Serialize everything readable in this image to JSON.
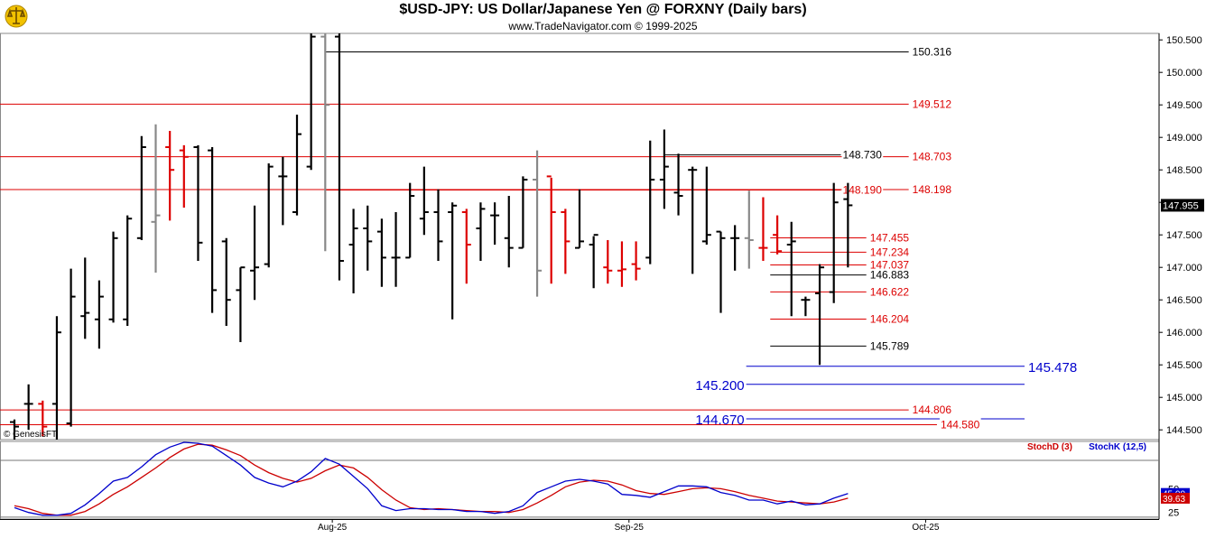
{
  "chart_data": {
    "type": "ohlc",
    "title": "$USD-JPY:  US Dollar/Japanese Yen @ FORXNY  (Daily bars)",
    "subtitle": "www.TradeNavigator.com © 1999-2025",
    "watermark": "© GenesisFT",
    "x_tick_labels": [
      {
        "label": "Aug-25",
        "index": 22.5
      },
      {
        "label": "Sep-25",
        "index": 43.5
      },
      {
        "label": "Oct-25",
        "index": 64.5
      }
    ],
    "y_axis": {
      "ylim": [
        144.35,
        150.6
      ],
      "ticks": [
        "150.500",
        "150.000",
        "149.500",
        "149.000",
        "148.500",
        "148.000",
        "147.500",
        "147.000",
        "146.500",
        "146.000",
        "145.500",
        "145.000",
        "144.500"
      ],
      "last_price_label": "147.955",
      "last_price": 147.955
    },
    "bars": [
      {
        "o": 144.62,
        "h": 144.66,
        "l": 144.3,
        "c": 144.55,
        "color": "black"
      },
      {
        "o": 144.9,
        "h": 145.2,
        "l": 144.5,
        "c": 144.9,
        "color": "black"
      },
      {
        "o": 144.9,
        "h": 144.95,
        "l": 144.4,
        "c": 144.55,
        "color": "red"
      },
      {
        "o": 144.9,
        "h": 146.25,
        "l": 144.3,
        "c": 146.0,
        "color": "black"
      },
      {
        "o": 144.6,
        "h": 146.98,
        "l": 144.55,
        "c": 146.55,
        "color": "black"
      },
      {
        "o": 146.25,
        "h": 147.15,
        "l": 145.9,
        "c": 146.3,
        "color": "black"
      },
      {
        "o": 146.2,
        "h": 146.8,
        "l": 145.75,
        "c": 146.55,
        "color": "black"
      },
      {
        "o": 146.2,
        "h": 147.55,
        "l": 146.15,
        "c": 147.45,
        "color": "black"
      },
      {
        "o": 146.2,
        "h": 147.8,
        "l": 146.1,
        "c": 147.75,
        "color": "black"
      },
      {
        "o": 147.45,
        "h": 149.02,
        "l": 147.42,
        "c": 148.85,
        "color": "black"
      },
      {
        "o": 147.7,
        "h": 149.2,
        "l": 146.92,
        "c": 147.8,
        "color": "gray"
      },
      {
        "o": 148.85,
        "h": 149.1,
        "l": 147.72,
        "c": 148.5,
        "color": "red"
      },
      {
        "o": 148.8,
        "h": 148.88,
        "l": 147.92,
        "c": 148.7,
        "color": "red"
      },
      {
        "o": 148.85,
        "h": 148.88,
        "l": 147.1,
        "c": 147.38,
        "color": "black"
      },
      {
        "o": 148.8,
        "h": 148.85,
        "l": 146.3,
        "c": 146.65,
        "color": "black"
      },
      {
        "o": 147.4,
        "h": 147.45,
        "l": 146.1,
        "c": 146.5,
        "color": "black"
      },
      {
        "o": 146.65,
        "h": 147.0,
        "l": 145.85,
        "c": 147.0,
        "color": "black"
      },
      {
        "o": 146.95,
        "h": 147.95,
        "l": 146.5,
        "c": 147.0,
        "color": "black"
      },
      {
        "o": 147.05,
        "h": 148.6,
        "l": 147.0,
        "c": 148.55,
        "color": "black"
      },
      {
        "o": 148.4,
        "h": 148.7,
        "l": 147.65,
        "c": 148.4,
        "color": "black"
      },
      {
        "o": 147.85,
        "h": 149.35,
        "l": 147.8,
        "c": 149.05,
        "color": "black"
      },
      {
        "o": 148.55,
        "h": 150.6,
        "l": 148.5,
        "c": 150.55,
        "color": "black"
      },
      {
        "o": 150.55,
        "h": 150.6,
        "l": 147.25,
        "c": 149.5,
        "color": "gray"
      },
      {
        "o": 150.55,
        "h": 150.6,
        "l": 146.8,
        "c": 147.1,
        "color": "black"
      },
      {
        "o": 147.35,
        "h": 147.9,
        "l": 146.6,
        "c": 147.6,
        "color": "black"
      },
      {
        "o": 147.6,
        "h": 147.95,
        "l": 146.95,
        "c": 147.4,
        "color": "black"
      },
      {
        "o": 147.55,
        "h": 147.75,
        "l": 146.7,
        "c": 147.15,
        "color": "black"
      },
      {
        "o": 147.15,
        "h": 147.85,
        "l": 146.7,
        "c": 147.15,
        "color": "black"
      },
      {
        "o": 147.15,
        "h": 148.3,
        "l": 147.15,
        "c": 148.1,
        "color": "black"
      },
      {
        "o": 147.75,
        "h": 148.55,
        "l": 147.5,
        "c": 147.85,
        "color": "black"
      },
      {
        "o": 147.85,
        "h": 148.2,
        "l": 147.1,
        "c": 147.4,
        "color": "black"
      },
      {
        "o": 147.85,
        "h": 148.0,
        "l": 146.2,
        "c": 147.95,
        "color": "black"
      },
      {
        "o": 147.85,
        "h": 147.9,
        "l": 146.75,
        "c": 147.35,
        "color": "red"
      },
      {
        "o": 147.6,
        "h": 148.0,
        "l": 147.1,
        "c": 147.9,
        "color": "black"
      },
      {
        "o": 147.8,
        "h": 148.0,
        "l": 147.35,
        "c": 147.8,
        "color": "black"
      },
      {
        "o": 147.45,
        "h": 148.1,
        "l": 147.0,
        "c": 147.3,
        "color": "black"
      },
      {
        "o": 147.3,
        "h": 148.4,
        "l": 147.3,
        "c": 148.35,
        "color": "black"
      },
      {
        "o": 148.35,
        "h": 148.8,
        "l": 146.55,
        "c": 146.95,
        "color": "gray"
      },
      {
        "o": 148.4,
        "h": 148.38,
        "l": 146.75,
        "c": 147.85,
        "color": "red"
      },
      {
        "o": 147.85,
        "h": 147.9,
        "l": 146.9,
        "c": 147.4,
        "color": "red"
      },
      {
        "o": 147.3,
        "h": 148.2,
        "l": 147.3,
        "c": 147.4,
        "color": "black"
      },
      {
        "o": 147.35,
        "h": 147.48,
        "l": 146.68,
        "c": 147.5,
        "color": "black"
      },
      {
        "o": 147.0,
        "h": 147.42,
        "l": 146.75,
        "c": 146.95,
        "color": "red"
      },
      {
        "o": 146.95,
        "h": 147.4,
        "l": 146.7,
        "c": 146.97,
        "color": "red"
      },
      {
        "o": 147.05,
        "h": 147.4,
        "l": 146.8,
        "c": 146.98,
        "color": "red"
      },
      {
        "o": 147.15,
        "h": 148.95,
        "l": 147.05,
        "c": 148.35,
        "color": "black"
      },
      {
        "o": 148.35,
        "h": 149.12,
        "l": 147.9,
        "c": 148.55,
        "color": "black"
      },
      {
        "o": 148.15,
        "h": 148.75,
        "l": 147.8,
        "c": 148.1,
        "color": "black"
      },
      {
        "o": 148.5,
        "h": 148.55,
        "l": 146.9,
        "c": 148.5,
        "color": "black"
      },
      {
        "o": 147.4,
        "h": 148.55,
        "l": 147.35,
        "c": 147.5,
        "color": "black"
      },
      {
        "o": 147.55,
        "h": 147.55,
        "l": 146.3,
        "c": 147.45,
        "color": "black"
      },
      {
        "o": 147.45,
        "h": 147.65,
        "l": 146.95,
        "c": 147.45,
        "color": "black"
      },
      {
        "o": 147.45,
        "h": 148.18,
        "l": 146.98,
        "c": 147.42,
        "color": "gray"
      },
      {
        "o": 147.3,
        "h": 148.08,
        "l": 147.1,
        "c": 147.3,
        "color": "red"
      },
      {
        "o": 147.5,
        "h": 147.8,
        "l": 147.2,
        "c": 147.25,
        "color": "red"
      },
      {
        "o": 147.35,
        "h": 147.7,
        "l": 146.25,
        "c": 147.4,
        "color": "black"
      },
      {
        "o": 146.5,
        "h": 146.55,
        "l": 146.25,
        "c": 146.5,
        "color": "black"
      },
      {
        "o": 146.6,
        "h": 147.05,
        "l": 145.5,
        "c": 147.0,
        "color": "black"
      },
      {
        "o": 146.62,
        "h": 148.3,
        "l": 146.45,
        "c": 148.0,
        "color": "black"
      },
      {
        "o": 148.05,
        "h": 148.3,
        "l": 147.0,
        "c": 147.955,
        "color": "black"
      }
    ],
    "levels": [
      {
        "value": 150.316,
        "label": "150.316",
        "color": "black",
        "start": 22,
        "end": 63.3
      },
      {
        "value": 149.512,
        "label": "149.512",
        "color": "red",
        "start": 0,
        "end": 63.3
      },
      {
        "value": 148.73,
        "label": "148.730",
        "color": "black",
        "start": 46,
        "end": 58.5
      },
      {
        "value": 148.703,
        "label": "148.703",
        "color": "red",
        "start": 0,
        "end": 63.3
      },
      {
        "value": 148.19,
        "label": "148.190",
        "color": "red",
        "start": 22,
        "end": 58.5
      },
      {
        "value": 148.198,
        "label": "148.198",
        "color": "red",
        "start": 0,
        "end": 63.3
      },
      {
        "value": 147.455,
        "label": "147.455",
        "color": "red",
        "start": 53.5,
        "end": 60.3
      },
      {
        "value": 147.234,
        "label": "147.234",
        "color": "red",
        "start": 53.5,
        "end": 60.3
      },
      {
        "value": 147.037,
        "label": "147.037",
        "color": "red",
        "start": 53.5,
        "end": 60.3
      },
      {
        "value": 146.883,
        "label": "146.883",
        "color": "black",
        "start": 53.5,
        "end": 60.3
      },
      {
        "value": 146.622,
        "label": "146.622",
        "color": "red",
        "start": 53.5,
        "end": 60.3
      },
      {
        "value": 146.204,
        "label": "146.204",
        "color": "red",
        "start": 53.5,
        "end": 60.3
      },
      {
        "value": 145.789,
        "label": "145.789",
        "color": "black",
        "start": 53.5,
        "end": 60.3
      },
      {
        "value": 145.478,
        "label": "145.478",
        "color": "blue",
        "start": 51.8,
        "end": 71.5
      },
      {
        "value": 145.2,
        "label": "145.200",
        "color": "blue",
        "start": 51.8,
        "end": 71.5
      },
      {
        "value": 144.806,
        "label": "144.806",
        "color": "red",
        "start": 0,
        "end": 63.3
      },
      {
        "value": 144.67,
        "label": "144.670",
        "color": "blue",
        "start": 51.8,
        "end": 71.5
      },
      {
        "value": 144.58,
        "label": "144.580",
        "color": "red",
        "start": 0,
        "end": 65.3
      }
    ],
    "oscillator": {
      "legend": [
        "StochD (3)",
        "StochK (12,5)"
      ],
      "legend_colors": [
        "#cc0000",
        "#0000cc"
      ],
      "ylim": [
        18,
        100
      ],
      "ticks": [
        "50",
        "25"
      ],
      "level_lines": [
        80,
        20
      ],
      "last_values": [
        "45.00",
        "39.63"
      ],
      "stochK": [
        30,
        25,
        22,
        22,
        24,
        33,
        45,
        58,
        62,
        73,
        86,
        94,
        99,
        98,
        95,
        85,
        75,
        62,
        56,
        52,
        58,
        68,
        82,
        76,
        63,
        50,
        32,
        27,
        29,
        29,
        28,
        28,
        26,
        26,
        24,
        26,
        32,
        46,
        52,
        58,
        60,
        58,
        55,
        44,
        43,
        41,
        47,
        53,
        53,
        52,
        46,
        43,
        38,
        38,
        34,
        37,
        33,
        34,
        40,
        45
      ],
      "stochD": [
        32,
        29,
        24,
        22,
        22,
        26,
        34,
        44,
        52,
        62,
        72,
        83,
        92,
        97,
        96,
        91,
        85,
        75,
        67,
        61,
        57,
        61,
        69,
        75,
        72,
        62,
        49,
        38,
        30,
        28,
        29,
        28,
        27,
        26,
        26,
        25,
        28,
        35,
        43,
        52,
        57,
        59,
        58,
        54,
        48,
        45,
        44,
        47,
        50,
        51,
        50,
        47,
        43,
        40,
        37,
        36,
        35,
        34,
        36,
        40
      ]
    }
  }
}
